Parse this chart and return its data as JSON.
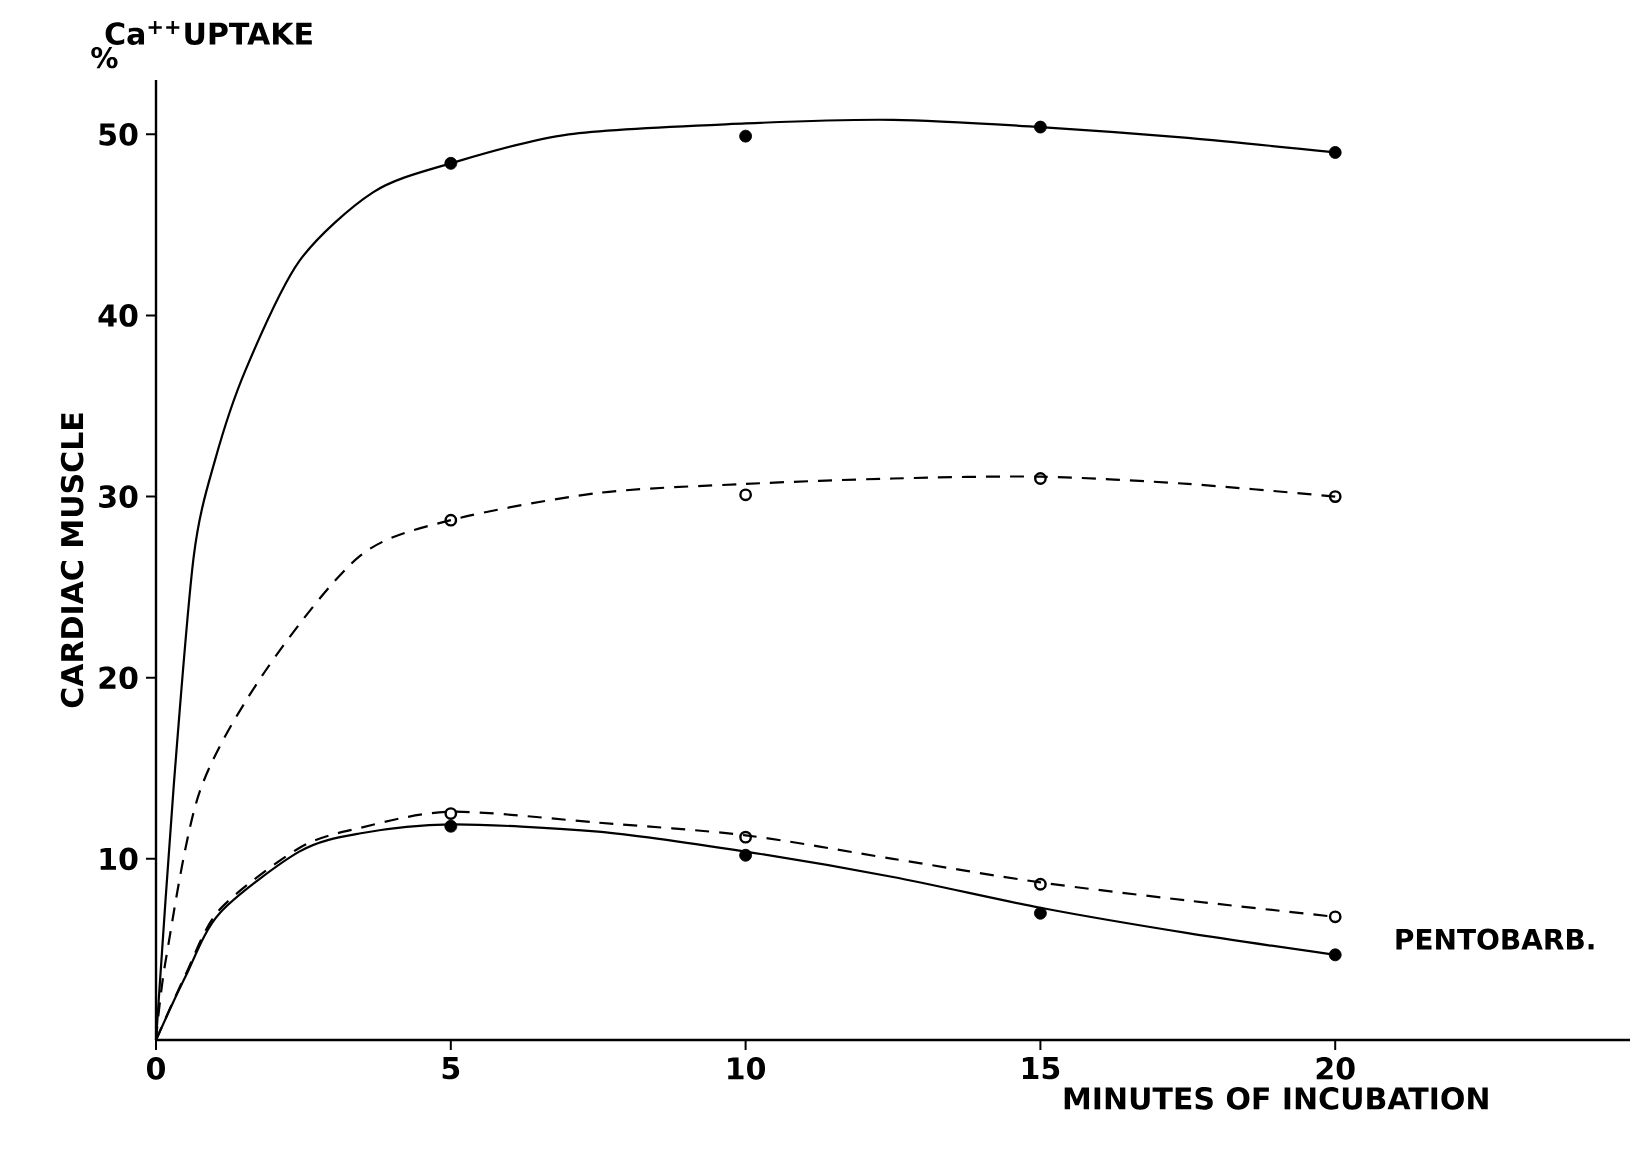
{
  "chart_data": {
    "type": "line",
    "title": "Ca$^{++}$UPTAKE",
    "xlabel": "MINUTES OF INCUBATION",
    "ylabel": "CARDIAC MUSCLE",
    "xlim": [
      0,
      25
    ],
    "ylim": [
      0,
      53
    ],
    "xticks": [
      0,
      5,
      10,
      15,
      20
    ],
    "yticks": [
      10,
      20,
      30,
      40,
      50
    ],
    "grid": false,
    "series": [
      {
        "color": "#000000",
        "line_style": "solid",
        "marker": "none",
        "x": [
          0,
          0.3,
          0.64,
          1.0,
          1.52,
          2.43,
          3.68,
          5,
          7,
          10,
          12.5,
          15,
          17.5,
          20
        ],
        "values": [
          0,
          14,
          26.7,
          32,
          37,
          43,
          46.8,
          48.4,
          50,
          50.6,
          50.8,
          50.4,
          49.8,
          49.0
        ]
      },
      {
        "type": "scatter",
        "color": "#000000",
        "marker": "circle",
        "x": [
          5,
          10,
          15,
          20
        ],
        "values": [
          48.4,
          49.9,
          50.4,
          49.0
        ]
      },
      {
        "color": "#000000",
        "line_style": "dashed",
        "marker": "none",
        "x": [
          0,
          0.17,
          0.74,
          1.86,
          3.45,
          5,
          7.5,
          10,
          12.5,
          15,
          17.5,
          20
        ],
        "values": [
          0,
          4.5,
          13.7,
          20.4,
          26.7,
          28.7,
          30.2,
          30.7,
          31.0,
          31.1,
          30.7,
          30.0
        ]
      },
      {
        "type": "scatter",
        "color": "#000000",
        "marker": "circle",
        "line_style": "dashed",
        "x": [
          5,
          10,
          15,
          20
        ],
        "values": [
          28.7,
          30.1,
          31.0,
          30.0
        ]
      },
      {
        "color": "#000000",
        "line_style": "solid",
        "marker": "none",
        "x": [
          0,
          0.5,
          1.08,
          2.43,
          3.45,
          5,
          7.5,
          10,
          12.5,
          15,
          17.5,
          20
        ],
        "values": [
          0,
          3.5,
          7.0,
          10.4,
          11.4,
          11.9,
          11.5,
          10.4,
          9.0,
          7.3,
          5.9,
          4.7
        ]
      },
      {
        "type": "scatter",
        "color": "#000000",
        "marker": "circle",
        "x": [
          5,
          10,
          15,
          20
        ],
        "values": [
          11.8,
          10.2,
          7.0,
          4.7
        ]
      },
      {
        "color": "#000000",
        "line_style": "dashed",
        "marker": "none",
        "x": [
          0,
          0.5,
          1.08,
          2.43,
          3.45,
          5,
          7.5,
          10,
          12.5,
          15,
          17.5,
          20
        ],
        "values": [
          0,
          3.6,
          7.2,
          10.6,
          11.7,
          12.6,
          12.0,
          11.3,
          10.0,
          8.7,
          7.7,
          6.8
        ]
      },
      {
        "type": "scatter",
        "color": "#000000",
        "marker": "circle",
        "line_style": "dashed",
        "x": [
          5,
          10,
          15,
          20
        ],
        "values": [
          12.5,
          11.2,
          8.6,
          6.8
        ]
      }
    ],
    "annotations": [
      "%",
      "PENTOBARB."
    ]
  }
}
